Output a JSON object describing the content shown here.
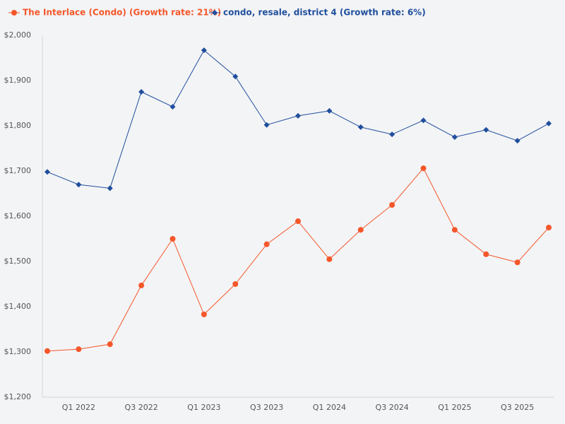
{
  "chart_data": {
    "type": "line",
    "categories": [
      null,
      "Q1 2022",
      null,
      "Q3 2022",
      null,
      "Q1 2023",
      null,
      "Q3 2023",
      null,
      "Q1 2024",
      null,
      "Q3 2024",
      null,
      "Q1 2025",
      null,
      "Q3 2025",
      null
    ],
    "series": [
      {
        "name": "The Interlace (Condo) (Growth rate: 21%)",
        "color": "#f4572a",
        "marker": "circle",
        "values": [
          1302,
          1306,
          1317,
          1447,
          1550,
          1383,
          1450,
          1538,
          1589,
          1505,
          1570,
          1625,
          1706,
          1570,
          1516,
          1498,
          1575
        ]
      },
      {
        "name": "condo, resale, district 4 (Growth rate: 6%)",
        "color": "#1f4e9c",
        "marker": "diamond",
        "values": [
          1698,
          1670,
          1662,
          1875,
          1842,
          1967,
          1909,
          1802,
          1822,
          1833,
          1797,
          1781,
          1812,
          1775,
          1791,
          1767,
          1805
        ]
      }
    ],
    "ylim": [
      1200,
      2000
    ],
    "yticks": [
      {
        "value": 1200,
        "label": "$1,200"
      },
      {
        "value": 1300,
        "label": "$1,300"
      },
      {
        "value": 1400,
        "label": "$1,400"
      },
      {
        "value": 1500,
        "label": "$1,500"
      },
      {
        "value": 1600,
        "label": "$1,600"
      },
      {
        "value": 1700,
        "label": "$1,700"
      },
      {
        "value": 1800,
        "label": "$1,800"
      },
      {
        "value": 1900,
        "label": "$1,900"
      },
      {
        "value": 2000,
        "label": "$2,000"
      }
    ],
    "grid": false
  }
}
